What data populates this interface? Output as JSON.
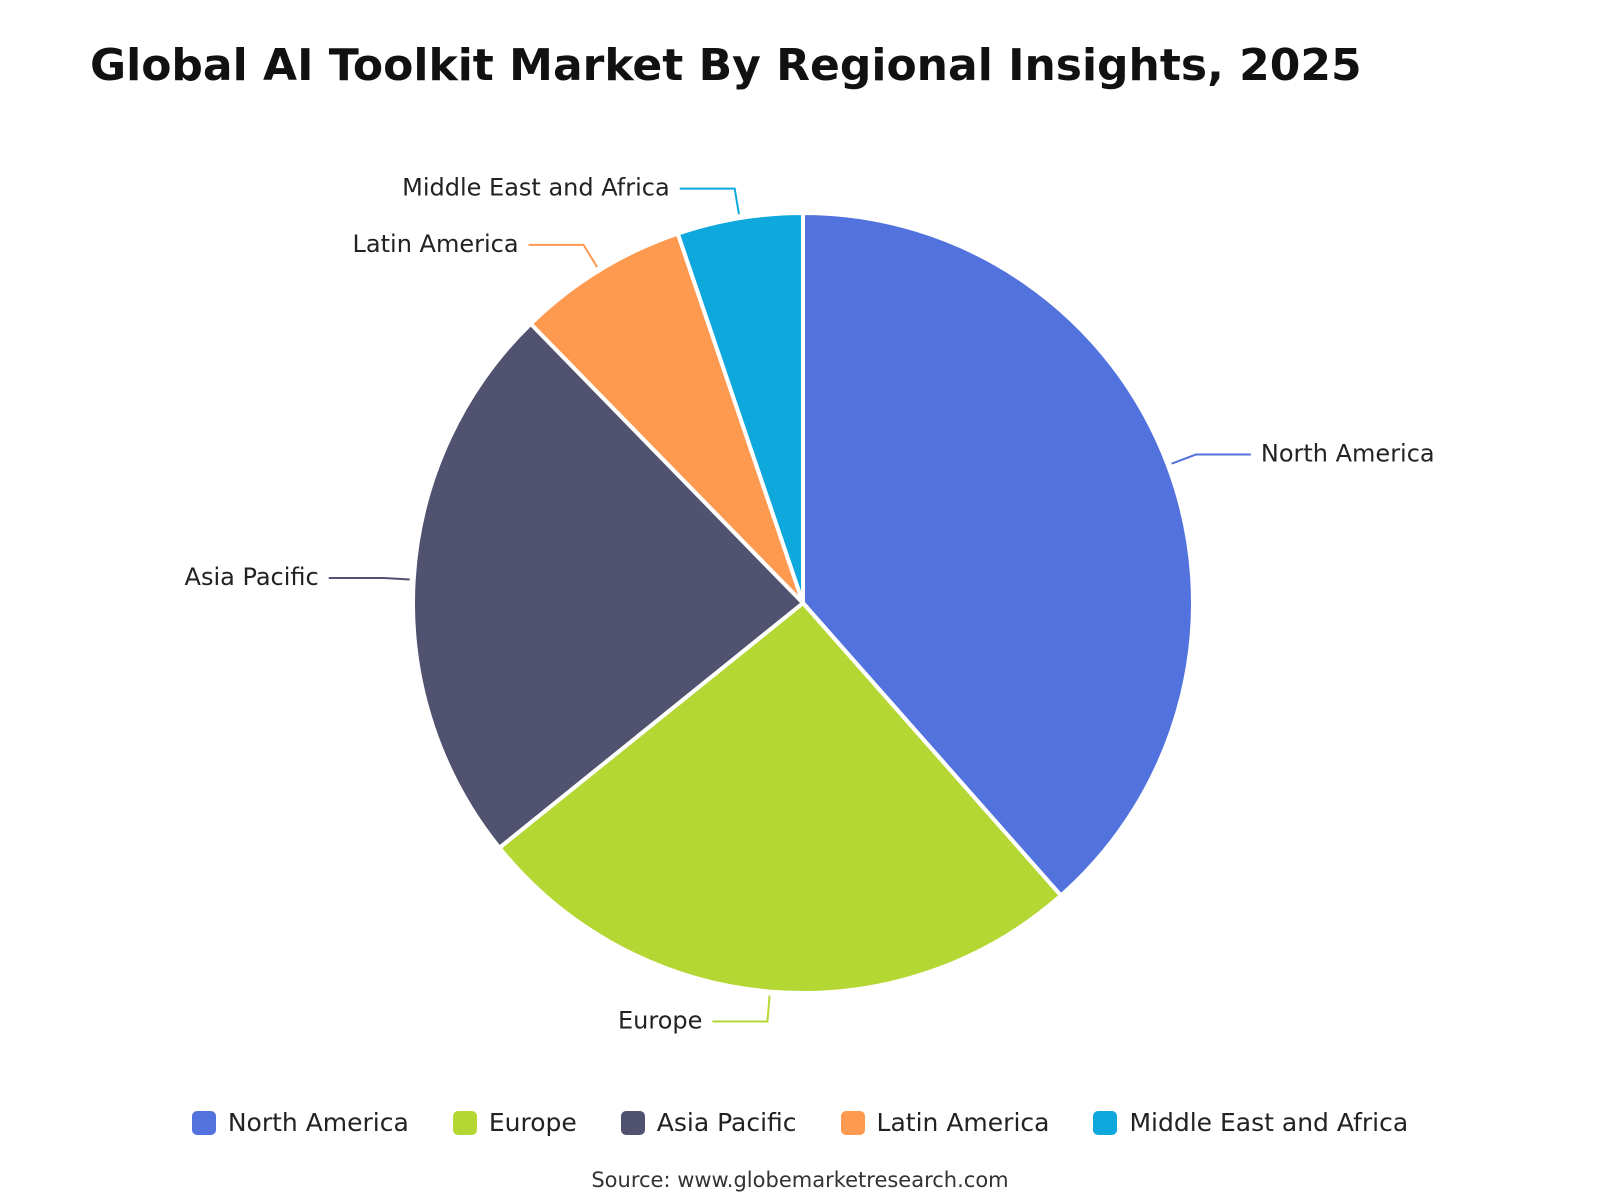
{
  "chart_data": {
    "type": "pie",
    "title": "Global AI Toolkit Market By Regional Insights, 2025",
    "categories": [
      "North America",
      "Europe",
      "Asia Pacific",
      "Latin America",
      "Middle East and Africa"
    ],
    "values": [
      38.5,
      25.7,
      23.5,
      7.1,
      5.2
    ],
    "colors": [
      "#5272de",
      "#b5d733",
      "#515270",
      "#fd9a50",
      "#0ea8dc"
    ],
    "source": "Source: www.globemarketresearch.com"
  }
}
